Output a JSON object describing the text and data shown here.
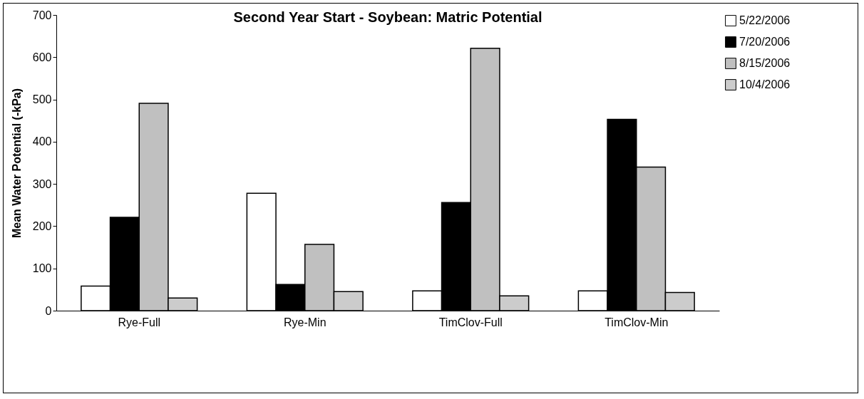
{
  "chart_data": {
    "type": "bar",
    "title": "Second Year Start - Soybean: Matric Potential",
    "ylabel": "Mean Water Potential (-kPa)",
    "categories": [
      "Rye-Full",
      "Rye-Min",
      "TimClov-Full",
      "TimClov-Min"
    ],
    "series": [
      {
        "name": "5/22/2006",
        "color": "#ffffff",
        "values": [
          58,
          278,
          47,
          47
        ]
      },
      {
        "name": "7/20/2006",
        "color": "#000000",
        "values": [
          221,
          62,
          256,
          453
        ]
      },
      {
        "name": "8/15/2006",
        "color": "#c0c0c0",
        "values": [
          491,
          157,
          621,
          340
        ]
      },
      {
        "name": "10/4/2006",
        "color": "#cccccc",
        "values": [
          30,
          45,
          35,
          43
        ]
      }
    ],
    "ylim": [
      0,
      700
    ],
    "yticks": [
      0,
      100,
      200,
      300,
      400,
      500,
      600,
      700
    ],
    "grid": false,
    "legend": "top right"
  }
}
